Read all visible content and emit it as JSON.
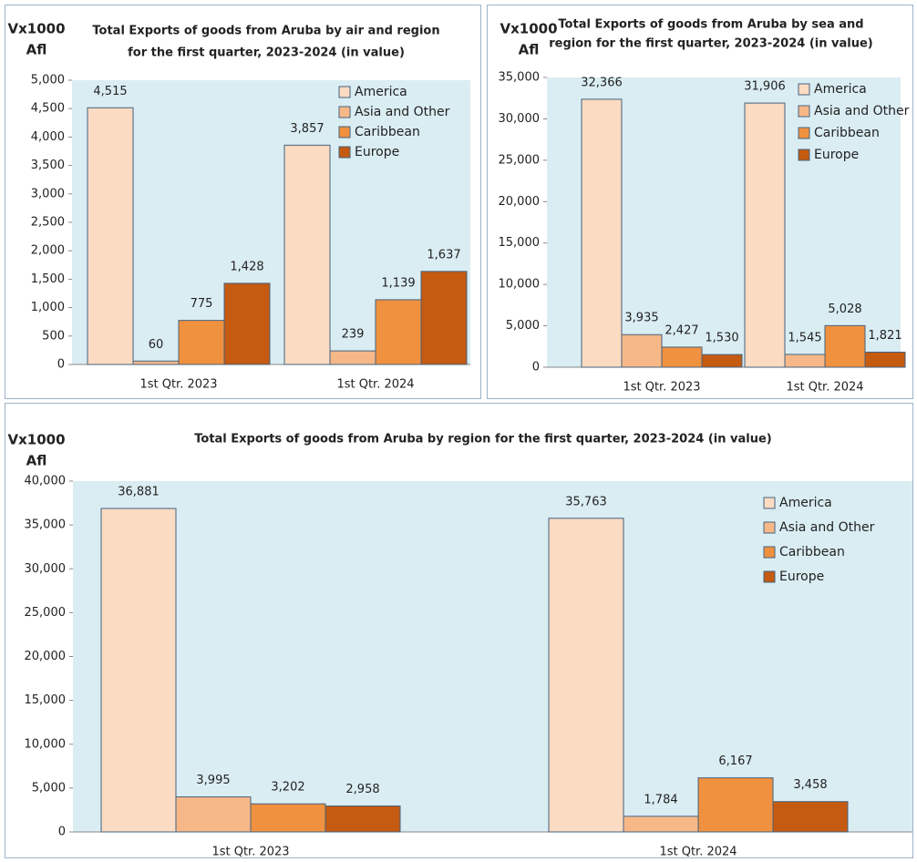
{
  "chart_data": [
    {
      "type": "bar",
      "title": [
        "Total Exports of goods from Aruba by air and region",
        "for the first quarter, 2023-2024 (in value)"
      ],
      "ylabel": [
        "Vx1000",
        "Afl"
      ],
      "categories": [
        "1st Qtr. 2023",
        "1st Qtr. 2024"
      ],
      "series": [
        {
          "name": "America",
          "color": "#fbdbc2",
          "values": [
            4515,
            3857
          ],
          "value_labels": [
            "4,515",
            "3,857"
          ]
        },
        {
          "name": "Asia and Other",
          "color": "#f7b888",
          "values": [
            60,
            239
          ],
          "value_labels": [
            "60",
            "239"
          ]
        },
        {
          "name": "Caribbean",
          "color": "#f0913f",
          "values": [
            775,
            1139
          ],
          "value_labels": [
            "775",
            "1,139"
          ]
        },
        {
          "name": "Europe",
          "color": "#c55a11",
          "values": [
            1428,
            1637
          ],
          "value_labels": [
            "1,428",
            "1,637"
          ]
        }
      ],
      "ylim": [
        0,
        5000
      ],
      "yticks": [
        0,
        500,
        {
          "value": 1000,
          "label": "1,000"
        },
        {
          "value": 1500,
          "label": "1,500"
        },
        {
          "value": 2000,
          "label": "2,000"
        },
        {
          "value": 2500,
          "label": "2,500"
        },
        {
          "value": 3000,
          "label": "3,000"
        },
        {
          "value": 3500,
          "label": "3,500"
        },
        {
          "value": 4000,
          "label": "4,000"
        },
        {
          "value": 4500,
          "label": "4,500"
        },
        {
          "value": 5000,
          "label": "5,000"
        }
      ],
      "legend": "upper right"
    },
    {
      "type": "bar",
      "title": [
        "Total Exports of goods from Aruba by sea and",
        "region for the first quarter, 2023-2024 (in value)"
      ],
      "ylabel": [
        "Vx1000",
        "Afl"
      ],
      "categories": [
        "1st Qtr. 2023",
        "1st Qtr. 2024"
      ],
      "series": [
        {
          "name": "America",
          "color": "#fbdbc2",
          "values": [
            32366,
            31906
          ],
          "value_labels": [
            "32,366",
            "31,906"
          ]
        },
        {
          "name": "Asia and Other",
          "color": "#f7b888",
          "values": [
            3935,
            1545
          ],
          "value_labels": [
            "3,935",
            "1,545"
          ]
        },
        {
          "name": "Caribbean",
          "color": "#f0913f",
          "values": [
            2427,
            5028
          ],
          "value_labels": [
            "2,427",
            "5,028"
          ]
        },
        {
          "name": "Europe",
          "color": "#c55a11",
          "values": [
            1530,
            1821
          ],
          "value_labels": [
            "1,530",
            "1,821"
          ]
        }
      ],
      "ylim": [
        0,
        35000
      ],
      "yticks": [
        0,
        {
          "value": 5000,
          "label": "5,000"
        },
        {
          "value": 10000,
          "label": "10,000"
        },
        {
          "value": 15000,
          "label": "15,000"
        },
        {
          "value": 20000,
          "label": "20,000"
        },
        {
          "value": 25000,
          "label": "25,000"
        },
        {
          "value": 30000,
          "label": "30,000"
        },
        {
          "value": 35000,
          "label": "35,000"
        }
      ],
      "legend": "upper right"
    },
    {
      "type": "bar",
      "title": [
        "Total Exports of goods from Aruba  by region for the first  quarter, 2023-2024  (in value)"
      ],
      "ylabel": [
        "Vx1000",
        "Afl"
      ],
      "categories": [
        "1st Qtr. 2023",
        "1st Qtr. 2024"
      ],
      "series": [
        {
          "name": "America",
          "color": "#fbdbc2",
          "values": [
            36881,
            35763
          ],
          "value_labels": [
            "36,881",
            "35,763"
          ]
        },
        {
          "name": "Asia and Other",
          "color": "#f7b888",
          "values": [
            3995,
            1784
          ],
          "value_labels": [
            "3,995",
            "1,784"
          ]
        },
        {
          "name": "Caribbean",
          "color": "#f0913f",
          "values": [
            3202,
            6167
          ],
          "value_labels": [
            "3,202",
            "6,167"
          ]
        },
        {
          "name": "Europe",
          "color": "#c55a11",
          "values": [
            2958,
            3458
          ],
          "value_labels": [
            "2,958",
            "3,458"
          ]
        }
      ],
      "ylim": [
        0,
        40000
      ],
      "yticks": [
        0,
        {
          "value": 5000,
          "label": "5,000"
        },
        {
          "value": 10000,
          "label": "10,000"
        },
        {
          "value": 15000,
          "label": "15,000"
        },
        {
          "value": 20000,
          "label": "20,000"
        },
        {
          "value": 25000,
          "label": "25,000"
        },
        {
          "value": 30000,
          "label": "30,000"
        },
        {
          "value": 35000,
          "label": "35,000"
        },
        {
          "value": 40000,
          "label": "40,000"
        }
      ],
      "legend": "upper right"
    }
  ]
}
